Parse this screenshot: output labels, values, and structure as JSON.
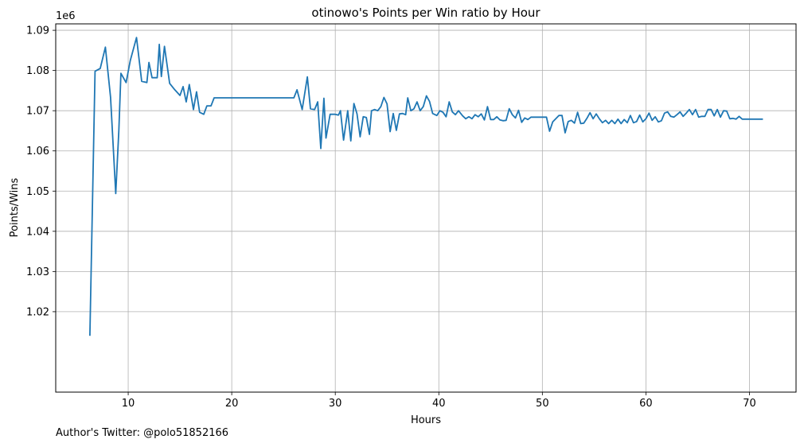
{
  "chart_data": {
    "type": "line",
    "title": "otinowo's Points per Win ratio by Hour",
    "xlabel": "Hours",
    "ylabel": "Points/Wins",
    "y_multiplier_label": "1e6",
    "xlim": [
      3.0,
      74.5
    ],
    "ylim": [
      1.0,
      1.0916
    ],
    "xticks": [
      10,
      20,
      30,
      40,
      50,
      60,
      70
    ],
    "yticks": [
      1.02,
      1.03,
      1.04,
      1.05,
      1.06,
      1.07,
      1.08,
      1.09
    ],
    "ytick_labels": [
      "1.02",
      "1.03",
      "1.04",
      "1.05",
      "1.06",
      "1.07",
      "1.08",
      "1.09"
    ],
    "grid": true,
    "line_color": "#1f77b4",
    "series": [
      {
        "values_unit": "x1e6",
        "points": [
          [
            6.3,
            1.014
          ],
          [
            6.8,
            1.0798
          ],
          [
            7.3,
            1.0805
          ],
          [
            7.8,
            1.0858
          ],
          [
            8.3,
            1.0733
          ],
          [
            8.8,
            1.0494
          ],
          [
            9.1,
            1.0651
          ],
          [
            9.3,
            1.0793
          ],
          [
            9.8,
            1.077
          ],
          [
            10.2,
            1.0825
          ],
          [
            10.8,
            1.0882
          ],
          [
            11.3,
            1.0773
          ],
          [
            11.8,
            1.077
          ],
          [
            12.0,
            1.082
          ],
          [
            12.3,
            1.0782
          ],
          [
            12.8,
            1.0782
          ],
          [
            13.0,
            1.0865
          ],
          [
            13.2,
            1.0785
          ],
          [
            13.5,
            1.086
          ],
          [
            14.0,
            1.0768
          ],
          [
            14.5,
            1.0752
          ],
          [
            15.0,
            1.0738
          ],
          [
            15.3,
            1.076
          ],
          [
            15.6,
            1.0722
          ],
          [
            15.9,
            1.0765
          ],
          [
            16.3,
            1.0703
          ],
          [
            16.6,
            1.0747
          ],
          [
            16.9,
            1.0696
          ],
          [
            17.3,
            1.0691
          ],
          [
            17.6,
            1.0712
          ],
          [
            18.0,
            1.0712
          ],
          [
            18.3,
            1.0732
          ],
          [
            26.0,
            1.0732
          ],
          [
            26.3,
            1.0752
          ],
          [
            26.8,
            1.0703
          ],
          [
            27.3,
            1.0784
          ],
          [
            27.6,
            1.0705
          ],
          [
            28.0,
            1.0703
          ],
          [
            28.3,
            1.0722
          ],
          [
            28.6,
            1.0606
          ],
          [
            28.9,
            1.0731
          ],
          [
            29.1,
            1.0632
          ],
          [
            29.5,
            1.0691
          ],
          [
            30.0,
            1.0691
          ],
          [
            30.3,
            1.0689
          ],
          [
            30.5,
            1.07
          ],
          [
            30.8,
            1.0627
          ],
          [
            31.2,
            1.07
          ],
          [
            31.5,
            1.0625
          ],
          [
            31.8,
            1.0718
          ],
          [
            32.1,
            1.0692
          ],
          [
            32.4,
            1.0635
          ],
          [
            32.7,
            1.0685
          ],
          [
            33.0,
            1.0683
          ],
          [
            33.3,
            1.0641
          ],
          [
            33.5,
            1.07
          ],
          [
            33.8,
            1.0703
          ],
          [
            34.1,
            1.07
          ],
          [
            34.4,
            1.071
          ],
          [
            34.7,
            1.0733
          ],
          [
            35.0,
            1.0717
          ],
          [
            35.3,
            1.0648
          ],
          [
            35.6,
            1.0693
          ],
          [
            35.9,
            1.0651
          ],
          [
            36.2,
            1.0692
          ],
          [
            36.5,
            1.0693
          ],
          [
            36.8,
            1.069
          ],
          [
            37.0,
            1.0732
          ],
          [
            37.3,
            1.07
          ],
          [
            37.6,
            1.0705
          ],
          [
            37.9,
            1.0722
          ],
          [
            38.2,
            1.07
          ],
          [
            38.5,
            1.071
          ],
          [
            38.8,
            1.0737
          ],
          [
            39.1,
            1.0723
          ],
          [
            39.4,
            1.0693
          ],
          [
            39.8,
            1.0688
          ],
          [
            40.1,
            1.07
          ],
          [
            40.4,
            1.0696
          ],
          [
            40.7,
            1.0685
          ],
          [
            41.0,
            1.0722
          ],
          [
            41.3,
            1.0697
          ],
          [
            41.6,
            1.069
          ],
          [
            41.9,
            1.07
          ],
          [
            42.3,
            1.0687
          ],
          [
            42.6,
            1.068
          ],
          [
            42.9,
            1.0685
          ],
          [
            43.2,
            1.068
          ],
          [
            43.5,
            1.069
          ],
          [
            43.8,
            1.0685
          ],
          [
            44.1,
            1.0692
          ],
          [
            44.4,
            1.0677
          ],
          [
            44.7,
            1.071
          ],
          [
            45.0,
            1.0678
          ],
          [
            45.3,
            1.0678
          ],
          [
            45.6,
            1.0685
          ],
          [
            45.9,
            1.0677
          ],
          [
            46.2,
            1.0675
          ],
          [
            46.5,
            1.0676
          ],
          [
            46.8,
            1.0705
          ],
          [
            47.1,
            1.069
          ],
          [
            47.4,
            1.0682
          ],
          [
            47.7,
            1.0701
          ],
          [
            48.0,
            1.0671
          ],
          [
            48.3,
            1.0682
          ],
          [
            48.6,
            1.0678
          ],
          [
            48.9,
            1.0684
          ],
          [
            50.4,
            1.0684
          ],
          [
            50.7,
            1.0649
          ],
          [
            51.0,
            1.0672
          ],
          [
            51.3,
            1.068
          ],
          [
            51.6,
            1.0688
          ],
          [
            51.9,
            1.0688
          ],
          [
            52.2,
            1.0645
          ],
          [
            52.5,
            1.0673
          ],
          [
            52.8,
            1.0676
          ],
          [
            53.1,
            1.0669
          ],
          [
            53.4,
            1.0696
          ],
          [
            53.7,
            1.0668
          ],
          [
            54.0,
            1.0669
          ],
          [
            54.3,
            1.0681
          ],
          [
            54.6,
            1.0695
          ],
          [
            54.9,
            1.068
          ],
          [
            55.2,
            1.0692
          ],
          [
            55.5,
            1.068
          ],
          [
            55.8,
            1.067
          ],
          [
            56.1,
            1.0676
          ],
          [
            56.4,
            1.0668
          ],
          [
            56.7,
            1.0676
          ],
          [
            57.0,
            1.0668
          ],
          [
            57.3,
            1.0679
          ],
          [
            57.6,
            1.0668
          ],
          [
            57.9,
            1.0678
          ],
          [
            58.2,
            1.067
          ],
          [
            58.5,
            1.0688
          ],
          [
            58.8,
            1.067
          ],
          [
            59.1,
            1.0673
          ],
          [
            59.4,
            1.0689
          ],
          [
            59.7,
            1.0672
          ],
          [
            60.0,
            1.068
          ],
          [
            60.3,
            1.0694
          ],
          [
            60.6,
            1.0676
          ],
          [
            60.9,
            1.0685
          ],
          [
            61.2,
            1.0672
          ],
          [
            61.5,
            1.0675
          ],
          [
            61.8,
            1.0694
          ],
          [
            62.1,
            1.0697
          ],
          [
            62.4,
            1.0686
          ],
          [
            62.7,
            1.0684
          ],
          [
            63.0,
            1.069
          ],
          [
            63.3,
            1.0697
          ],
          [
            63.6,
            1.0686
          ],
          [
            63.9,
            1.0694
          ],
          [
            64.2,
            1.0703
          ],
          [
            64.5,
            1.069
          ],
          [
            64.8,
            1.0703
          ],
          [
            65.1,
            1.0684
          ],
          [
            65.4,
            1.0686
          ],
          [
            65.7,
            1.0686
          ],
          [
            66.0,
            1.0703
          ],
          [
            66.3,
            1.0703
          ],
          [
            66.6,
            1.0687
          ],
          [
            66.9,
            1.0703
          ],
          [
            67.2,
            1.0684
          ],
          [
            67.5,
            1.07
          ],
          [
            67.8,
            1.0699
          ],
          [
            68.1,
            1.068
          ],
          [
            68.4,
            1.0681
          ],
          [
            68.7,
            1.0679
          ],
          [
            69.0,
            1.0686
          ],
          [
            69.3,
            1.0679
          ],
          [
            71.3,
            1.0679
          ]
        ]
      }
    ]
  },
  "footer": {
    "author_text": "Author's Twitter: @polo51852166"
  }
}
